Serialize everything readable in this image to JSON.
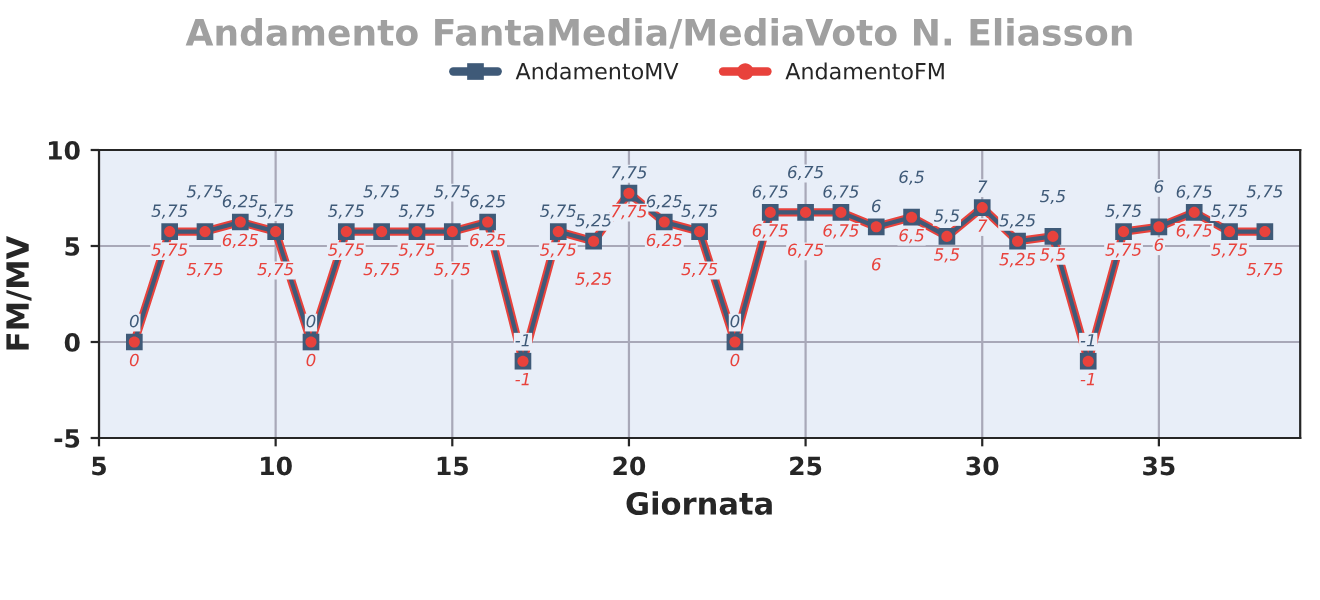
{
  "chart_data": {
    "type": "line",
    "title": "Andamento FantaMedia/MediaVoto N. Eliasson",
    "xlabel": "Giornata",
    "ylabel": "FM/MV",
    "x": [
      6,
      7,
      8,
      9,
      10,
      11,
      12,
      13,
      14,
      15,
      16,
      17,
      18,
      19,
      20,
      21,
      22,
      23,
      24,
      25,
      26,
      27,
      28,
      29,
      30,
      31,
      32,
      33,
      34,
      35,
      36,
      37,
      38
    ],
    "xlim": [
      5,
      39
    ],
    "xticks": [
      5,
      10,
      15,
      20,
      25,
      30,
      35
    ],
    "ylim": [
      -5,
      10
    ],
    "yticks": [
      -5,
      0,
      5,
      10
    ],
    "grid": true,
    "legend": "top",
    "series": [
      {
        "name": "AndamentoMV",
        "color": "#3f5a78",
        "marker": "square",
        "values": [
          0,
          5.75,
          5.75,
          6.25,
          5.75,
          0,
          5.75,
          5.75,
          5.75,
          5.75,
          6.25,
          -1,
          5.75,
          5.25,
          7.75,
          6.25,
          5.75,
          0,
          6.75,
          6.75,
          6.75,
          6,
          6.5,
          5.5,
          7,
          5.25,
          5.5,
          -1,
          5.75,
          6,
          6.75,
          5.75,
          5.75
        ],
        "value_labels": [
          "0",
          "5,75",
          "5,75",
          "6,25",
          "5,75",
          "0",
          "5,75",
          "5,75",
          "5,75",
          "5,75",
          "6,25",
          "-1",
          "5,75",
          "5,25",
          "7,75",
          "6,25",
          "5,75",
          "0",
          "6,75",
          "6,75",
          "6,75",
          "6",
          "6,5",
          "5,5",
          "7",
          "5,25",
          "5,5",
          "-1",
          "5,75",
          "6",
          "6,75",
          "5,75",
          "5,75"
        ]
      },
      {
        "name": "AndamentoFM",
        "color": "#e8423c",
        "marker": "circle",
        "values": [
          0,
          5.75,
          5.75,
          6.25,
          5.75,
          0,
          5.75,
          5.75,
          5.75,
          5.75,
          6.25,
          -1,
          5.75,
          5.25,
          7.75,
          6.25,
          5.75,
          0,
          6.75,
          6.75,
          6.75,
          6,
          6.5,
          5.5,
          7,
          5.25,
          5.5,
          -1,
          5.75,
          6,
          6.75,
          5.75,
          5.75
        ],
        "value_labels": [
          "0",
          "5,75",
          "5,75",
          "6,25",
          "5,75",
          "0",
          "5,75",
          "5,75",
          "5,75",
          "5,75",
          "6,25",
          "-1",
          "5,75",
          "5,25",
          "7,75",
          "6,25",
          "5,75",
          "0",
          "6,75",
          "6,75",
          "6,75",
          "6",
          "6,5",
          "5,5",
          "7",
          "5,25",
          "5,5",
          "-1",
          "5,75",
          "6",
          "6,75",
          "5,75",
          "5,75"
        ]
      }
    ]
  }
}
